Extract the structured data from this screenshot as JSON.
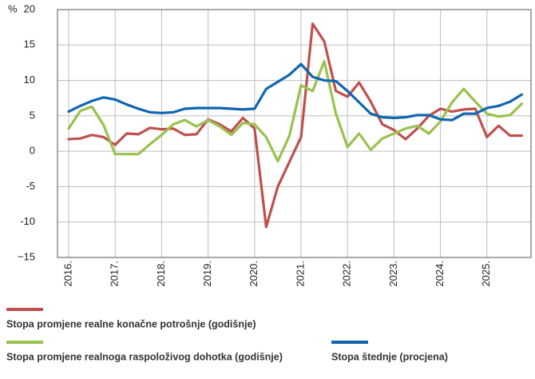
{
  "chart_data": {
    "type": "line",
    "y_label": "%",
    "categories": [
      "2016.",
      null,
      null,
      null,
      "2017.",
      null,
      null,
      null,
      "2018.",
      null,
      null,
      null,
      "2019.",
      null,
      null,
      null,
      "2020.",
      null,
      null,
      null,
      "2021.",
      null,
      null,
      null,
      "2022.",
      null,
      null,
      null,
      "2023.",
      null,
      null,
      null,
      "2024.",
      null,
      null,
      null,
      "2025.",
      null,
      null,
      null
    ],
    "series": [
      {
        "name": "Stopa promjene realne konačne potrošnje (godišnje)",
        "color": "#c0504d",
        "values": [
          1.7,
          1.8,
          2.3,
          2.0,
          0.9,
          2.5,
          2.4,
          3.3,
          3.1,
          3.2,
          2.3,
          2.4,
          4.5,
          3.8,
          2.8,
          4.7,
          3.2,
          -10.7,
          -5.0,
          -1.5,
          2.0,
          18.0,
          15.5,
          8.5,
          7.7,
          9.7,
          7.0,
          3.8,
          3.0,
          1.7,
          3.2,
          5.0,
          6.0,
          5.6,
          5.9,
          6.0,
          2.0,
          3.6,
          2.2,
          2.2
        ]
      },
      {
        "name": "Stopa promjene realnoga raspoloživog dohotka (godišnje)",
        "color": "#99c24d",
        "values": [
          3.2,
          5.7,
          6.3,
          3.7,
          -0.4,
          -0.4,
          -0.4,
          1.0,
          2.3,
          3.8,
          4.4,
          3.5,
          4.4,
          3.5,
          2.3,
          4.0,
          3.8,
          2.0,
          -1.4,
          2.2,
          9.3,
          8.5,
          12.7,
          5.3,
          0.6,
          2.5,
          0.2,
          1.8,
          2.5,
          3.2,
          3.6,
          2.5,
          4.2,
          6.9,
          8.8,
          7.0,
          5.3,
          4.9,
          5.1,
          6.7
        ]
      },
      {
        "name": "Stopa štednje (procjena)",
        "color": "#1066b0",
        "values": [
          5.6,
          6.4,
          7.1,
          7.6,
          7.3,
          6.6,
          6.0,
          5.5,
          5.4,
          5.5,
          6.0,
          6.1,
          6.1,
          6.1,
          6.0,
          5.9,
          6.0,
          8.8,
          9.8,
          10.8,
          12.3,
          10.5,
          10.0,
          9.9,
          8.5,
          6.9,
          5.3,
          4.8,
          4.7,
          4.8,
          5.1,
          5.1,
          4.5,
          4.4,
          5.3,
          5.3,
          6.1,
          6.4,
          7.0,
          8.0
        ]
      }
    ],
    "ylim": [
      -15,
      20
    ],
    "yticks": [
      {
        "value": -15,
        "label": "−15"
      },
      -10,
      -5,
      0,
      5,
      10,
      15,
      20
    ],
    "grid": true
  }
}
